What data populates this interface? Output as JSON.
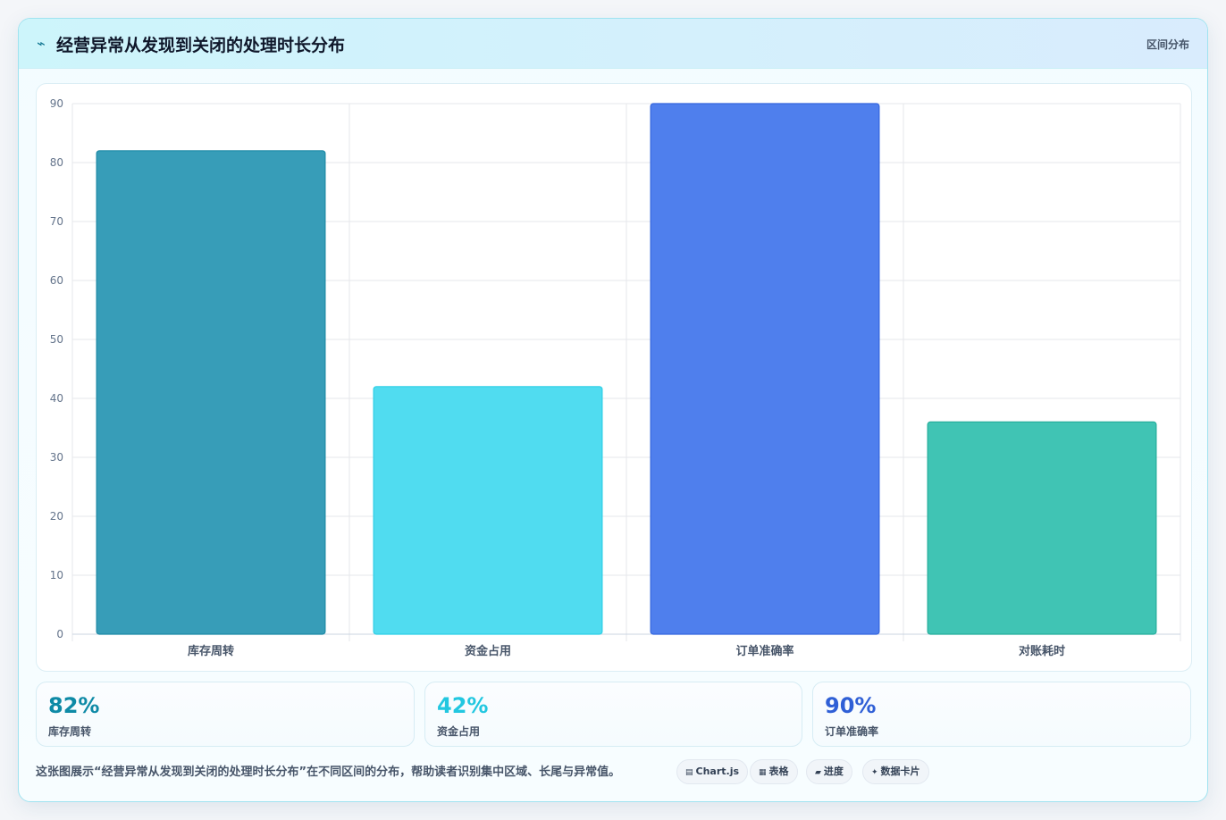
{
  "header": {
    "icon": "trend-icon",
    "title": "经营异常从发现到关闭的处理时长分布",
    "tag": "区间分布"
  },
  "chart_data": {
    "type": "bar",
    "categories": [
      "库存周转",
      "资金占用",
      "订单准确率",
      "对账耗时"
    ],
    "values": [
      82,
      42,
      90,
      36
    ],
    "ylim": [
      0,
      90
    ],
    "yticks": [
      0,
      10,
      20,
      30,
      40,
      50,
      60,
      70,
      80,
      90
    ],
    "grid": true,
    "legend": "none",
    "colors": [
      "#379db8",
      "#50dcf0",
      "#4f7fed",
      "#40c4b4"
    ],
    "border_colors": [
      "#1d8aa6",
      "#2ecfe6",
      "#3566de",
      "#25ae9c"
    ]
  },
  "stats": [
    {
      "value": "82%",
      "label": "库存周转",
      "color": "#0e8aa6"
    },
    {
      "value": "42%",
      "label": "资金占用",
      "color": "#22c7e0"
    },
    {
      "value": "90%",
      "label": "订单准确率",
      "color": "#2f5fd6"
    }
  ],
  "footer": {
    "text": "这张图展示“经营异常从发现到关闭的处理时长分布”在不同区间的分布，帮助读者识别集中区域、长尾与异常值。",
    "pills": [
      {
        "icon": "▤",
        "label": "Chart.js"
      },
      {
        "icon": "▦",
        "label": "表格"
      },
      {
        "icon": "▰",
        "label": "进度"
      },
      {
        "icon": "✦",
        "label": "数据卡片"
      }
    ]
  }
}
